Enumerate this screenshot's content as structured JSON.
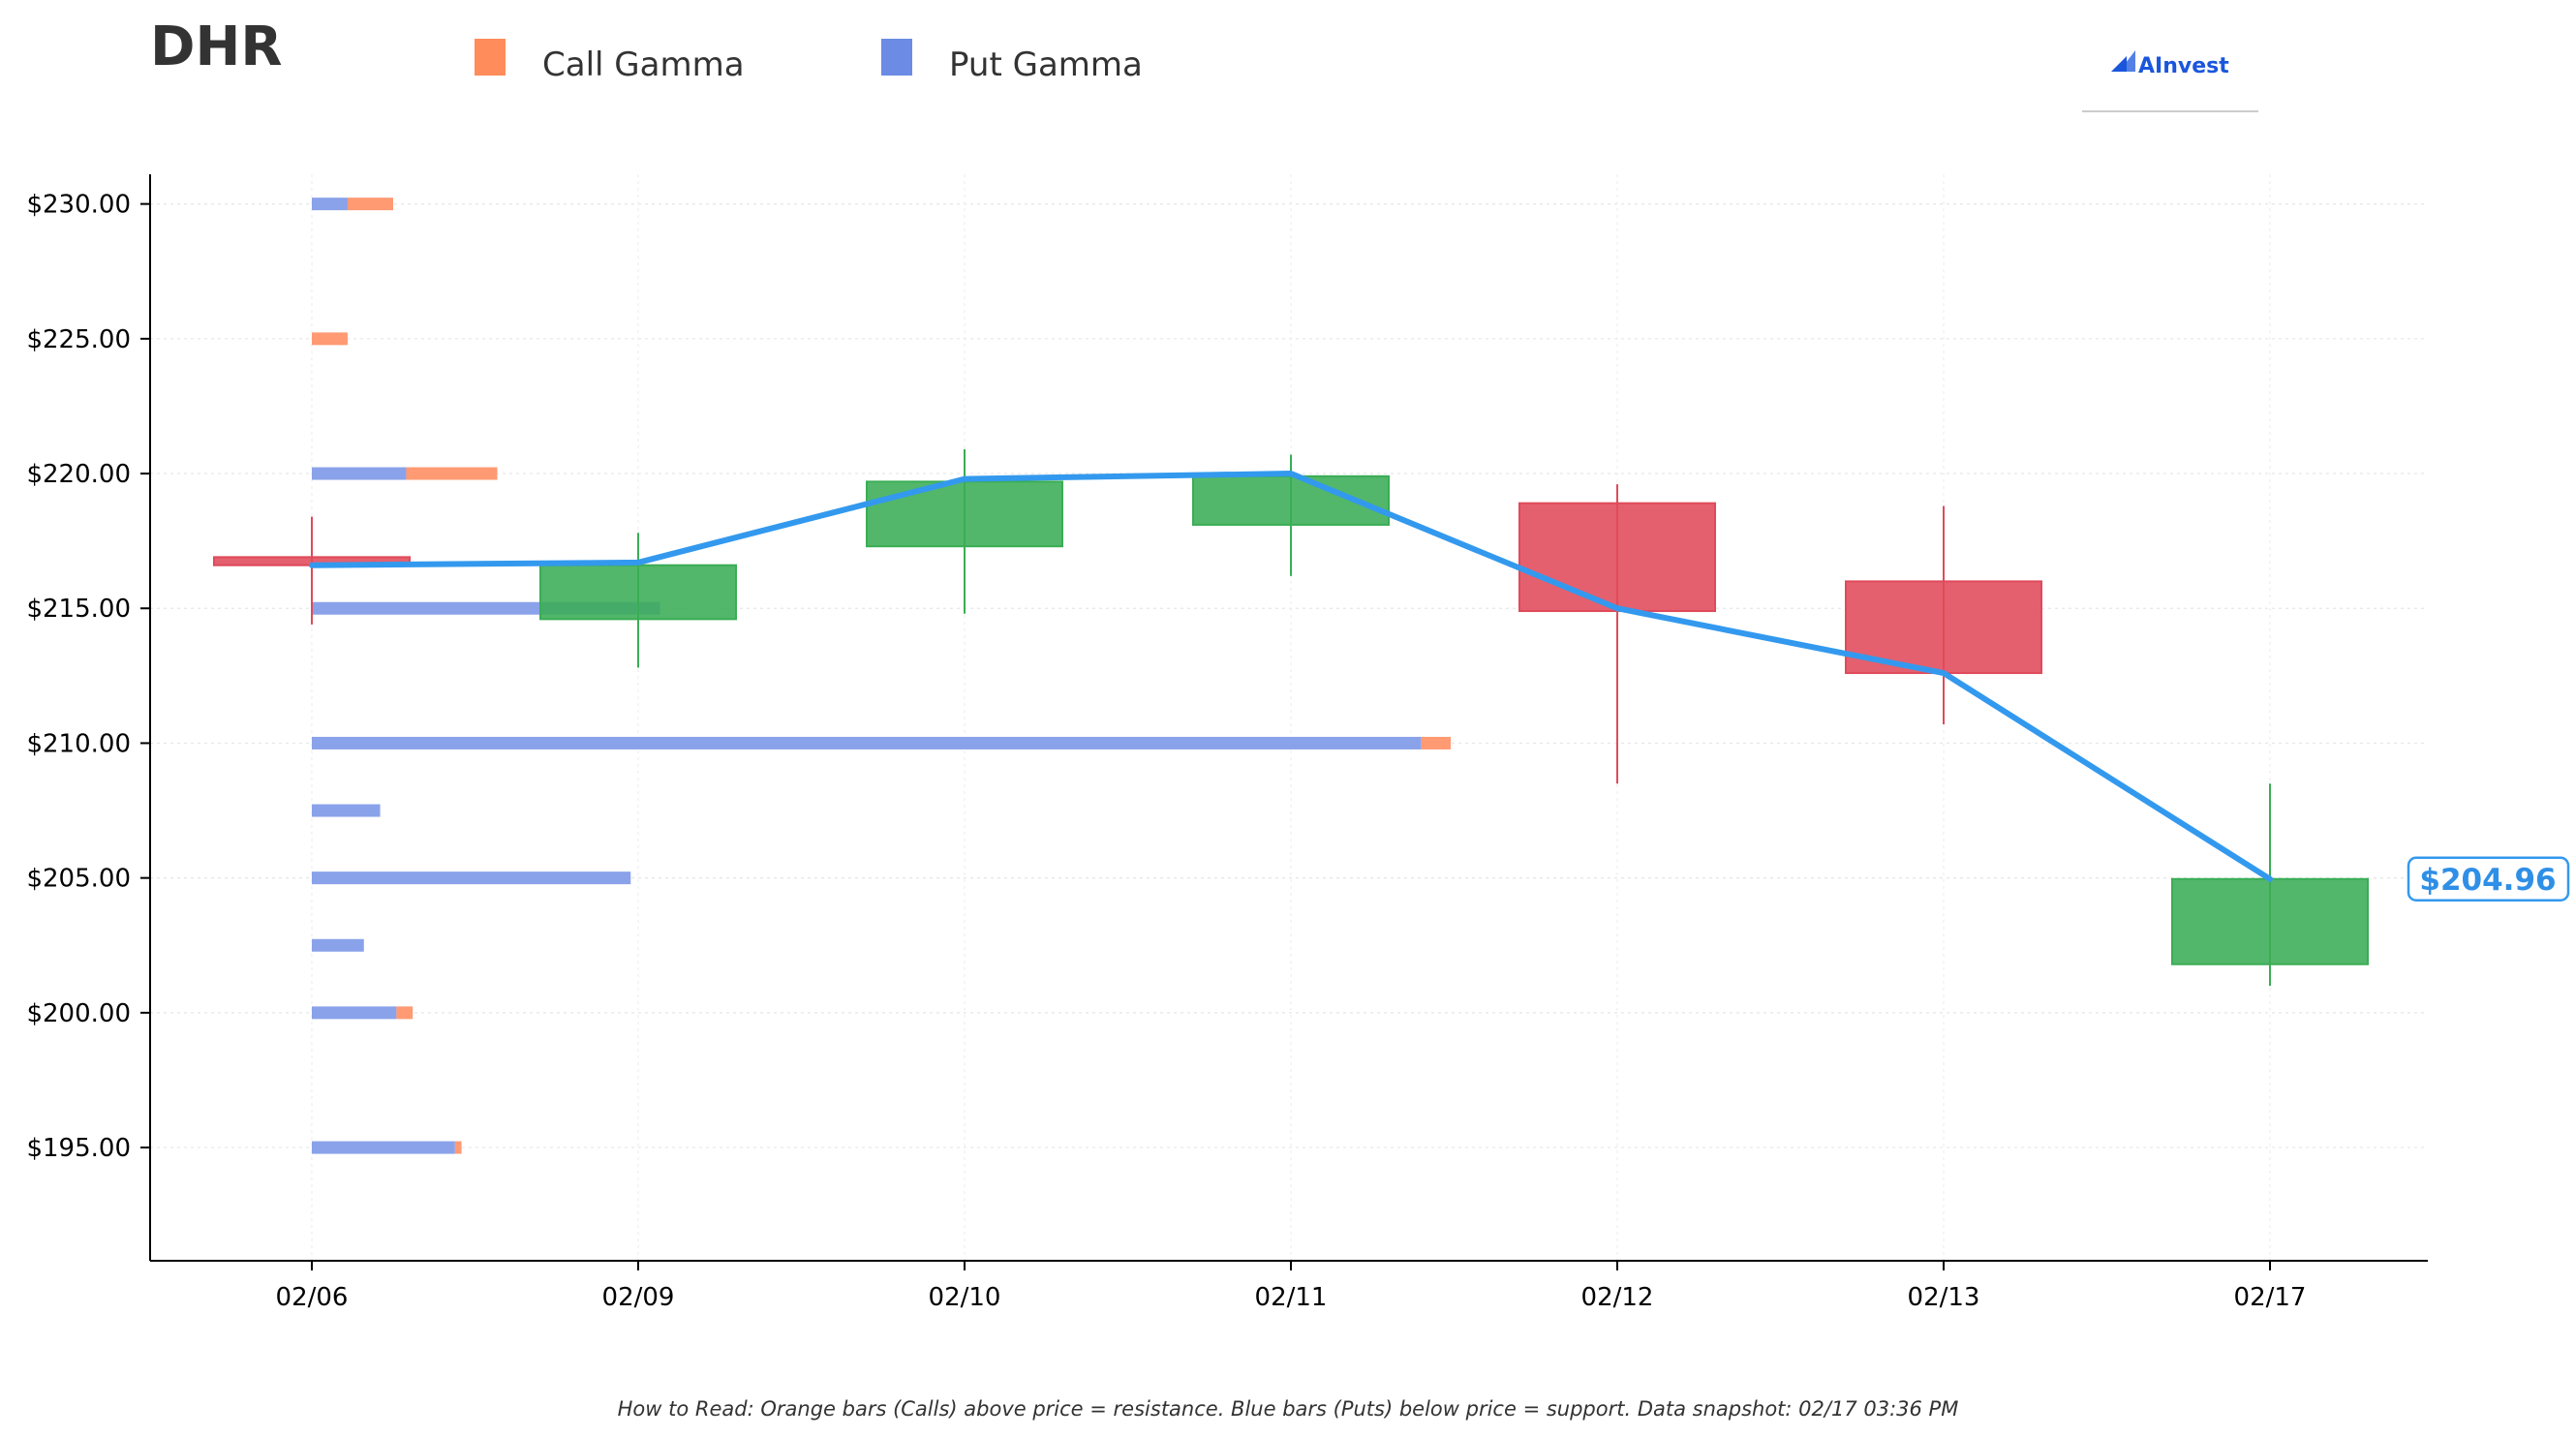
{
  "chart_data": {
    "type": "candlestick",
    "title": "DHR",
    "legend": [
      {
        "name": "Call Gamma",
        "color": "#ff8c5a"
      },
      {
        "name": "Put Gamma",
        "color": "#6b8be4"
      }
    ],
    "legend_position": "top",
    "logo": "AInvest",
    "categories": [
      "02/06",
      "02/09",
      "02/10",
      "02/11",
      "02/12",
      "02/13",
      "02/17"
    ],
    "ylim": [
      190.8,
      231.1
    ],
    "yticks": [
      195,
      200,
      205,
      210,
      215,
      220,
      225,
      230
    ],
    "ytick_labels": [
      "$195.00",
      "$200.00",
      "$205.00",
      "$210.00",
      "$215.00",
      "$220.00",
      "$225.00",
      "$230.00"
    ],
    "grid": true,
    "candles": [
      {
        "date": "02/06",
        "open": 216.9,
        "high": 218.4,
        "low": 214.4,
        "close": 216.6
      },
      {
        "date": "02/09",
        "open": 214.6,
        "high": 217.8,
        "low": 212.8,
        "close": 216.6
      },
      {
        "date": "02/10",
        "open": 217.3,
        "high": 220.9,
        "low": 214.8,
        "close": 219.7
      },
      {
        "date": "02/11",
        "open": 218.1,
        "high": 220.7,
        "low": 216.2,
        "close": 219.9
      },
      {
        "date": "02/12",
        "open": 218.9,
        "high": 219.6,
        "low": 208.5,
        "close": 214.9
      },
      {
        "date": "02/13",
        "open": 216.0,
        "high": 218.8,
        "low": 210.7,
        "close": 212.6
      },
      {
        "date": "02/17",
        "open": 201.8,
        "high": 208.5,
        "low": 201.0,
        "close": 204.96
      }
    ],
    "close_line": [
      216.6,
      216.7,
      219.8,
      220.0,
      215.0,
      212.6,
      204.96
    ],
    "gamma_levels": [
      {
        "strike": 230.0,
        "put": 0.11,
        "call": 0.14
      },
      {
        "strike": 225.0,
        "put": 0.0,
        "call": 0.11
      },
      {
        "strike": 220.0,
        "put": 0.29,
        "call": 0.28
      },
      {
        "strike": 215.0,
        "put": 1.07,
        "call": 0.0
      },
      {
        "strike": 210.0,
        "put": 3.41,
        "call": 0.09
      },
      {
        "strike": 207.5,
        "put": 0.21,
        "call": 0.0
      },
      {
        "strike": 205.0,
        "put": 0.98,
        "call": 0.0
      },
      {
        "strike": 202.5,
        "put": 0.16,
        "call": 0.0
      },
      {
        "strike": 200.0,
        "put": 0.26,
        "call": 0.05
      },
      {
        "strike": 195.0,
        "put": 0.44,
        "call": 0.02
      }
    ],
    "current_price": 204.96,
    "current_price_label": "$204.96",
    "footnote": "How to Read: Orange bars (Calls) above price = resistance. Blue bars (Puts) below price = support. Data snapshot: 02/17 03:36 PM"
  },
  "colors": {
    "up": "#3aad55",
    "down": "#e04a5a",
    "close_line": "#3399ee",
    "call": "#ff9a73",
    "put": "#8aa2ea",
    "legend_call": "#ff8c5a",
    "legend_put": "#6b8be4",
    "logo": "#1a56db"
  }
}
